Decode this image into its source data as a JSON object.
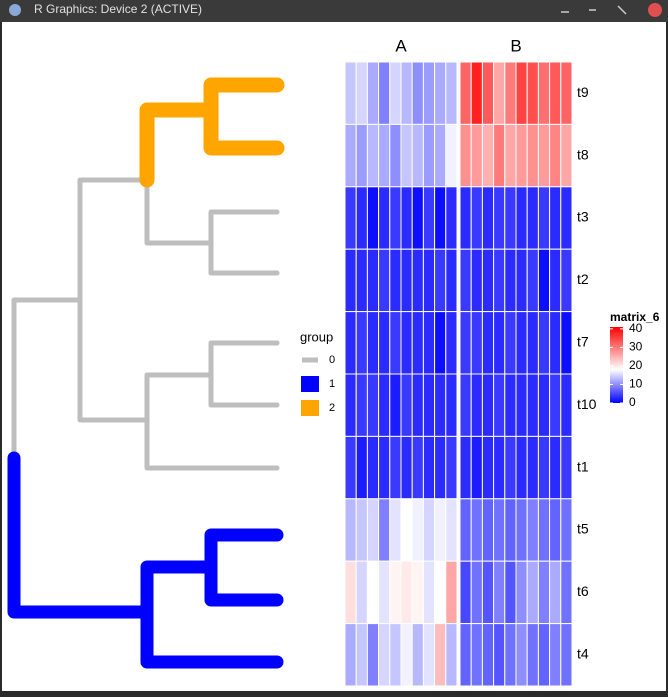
{
  "window": {
    "title": "R Graphics: Device 2 (ACTIVE)"
  },
  "chart_data": {
    "type": "heatmap",
    "column_groups": [
      "A",
      "B"
    ],
    "columns_per_group": 10,
    "rows": [
      "t9",
      "t8",
      "t3",
      "t2",
      "t7",
      "t10",
      "t1",
      "t5",
      "t6",
      "t4"
    ],
    "values": [
      [
        14,
        15,
        12,
        9,
        15,
        13,
        10,
        11,
        12,
        13,
        32,
        38,
        33,
        26,
        30,
        35,
        34,
        31,
        33,
        32
      ],
      [
        12,
        11,
        13,
        12,
        10,
        14,
        13,
        11,
        12,
        17,
        28,
        27,
        25,
        30,
        26,
        27,
        28,
        27,
        29,
        26
      ],
      [
        4,
        3,
        1,
        3,
        4,
        3,
        1,
        4,
        1,
        3,
        3,
        4,
        3,
        4,
        4,
        3,
        3,
        4,
        3,
        3
      ],
      [
        3,
        3,
        3,
        4,
        3,
        3,
        3,
        3,
        4,
        3,
        4,
        3,
        3,
        4,
        3,
        3,
        4,
        1,
        3,
        4
      ],
      [
        3,
        4,
        3,
        3,
        4,
        3,
        3,
        3,
        1,
        3,
        4,
        4,
        3,
        3,
        4,
        3,
        3,
        4,
        3,
        1
      ],
      [
        3,
        4,
        4,
        3,
        2,
        4,
        3,
        3,
        3,
        3,
        4,
        3,
        3,
        4,
        3,
        3,
        3,
        3,
        4,
        3
      ],
      [
        4,
        2,
        3,
        3,
        4,
        3,
        4,
        3,
        3,
        4,
        3,
        2,
        3,
        3,
        4,
        3,
        3,
        4,
        3,
        4
      ],
      [
        13,
        14,
        15,
        9,
        16,
        18,
        17,
        15,
        17,
        16,
        7,
        8,
        7,
        8,
        7,
        8,
        9,
        8,
        7,
        8
      ],
      [
        21,
        15,
        18,
        16,
        19,
        20,
        19,
        16,
        18,
        26,
        5,
        8,
        6,
        9,
        6,
        10,
        12,
        9,
        12,
        8
      ],
      [
        12,
        14,
        9,
        15,
        14,
        17,
        13,
        16,
        24,
        13,
        7,
        8,
        7,
        6,
        8,
        10,
        8,
        7,
        9,
        8
      ]
    ],
    "colorbar": {
      "title": "matrix_6",
      "clim": [
        0,
        41
      ],
      "ticks": [
        0,
        10,
        20,
        30,
        40
      ],
      "stops": [
        {
          "value": 0,
          "color": "#0000ff"
        },
        {
          "value": 18,
          "color": "#ffffff"
        },
        {
          "value": 41,
          "color": "#ff0000"
        }
      ]
    },
    "group_legend": {
      "title": "group",
      "items": [
        {
          "name": "0",
          "color": "#bebebe"
        },
        {
          "name": "1",
          "color": "#0000ff"
        },
        {
          "name": "2",
          "color": "#ffa500"
        }
      ]
    }
  }
}
